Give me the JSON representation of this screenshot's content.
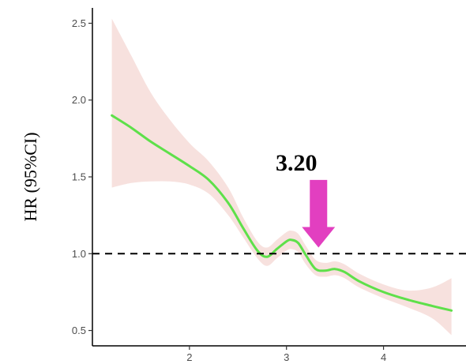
{
  "chart_data": {
    "type": "line",
    "title": "",
    "xlabel": "",
    "ylabel": "HR (95%CI)",
    "xlim": [
      1.0,
      4.85
    ],
    "ylim": [
      0.4,
      2.6
    ],
    "x_ticks": [
      2,
      3,
      4
    ],
    "x_tick_labels": [
      "2",
      "3",
      "4"
    ],
    "y_ticks": [
      0.5,
      1.0,
      1.5,
      2.0,
      2.5
    ],
    "y_tick_labels": [
      "0.5",
      "1.0",
      "1.5",
      "2.0",
      "2.5"
    ],
    "grid": false,
    "legend": "none",
    "reference_line": {
      "y": 1.0,
      "style": "dashed",
      "color": "#000000"
    },
    "series": [
      {
        "color": "#5ee04a",
        "band_color": "#f7e1de",
        "x": [
          1.2,
          1.4,
          1.6,
          1.8,
          2.0,
          2.2,
          2.4,
          2.55,
          2.7,
          2.8,
          2.9,
          3.0,
          3.05,
          3.12,
          3.2,
          3.3,
          3.4,
          3.5,
          3.6,
          3.75,
          4.0,
          4.25,
          4.5,
          4.7
        ],
        "y": [
          1.9,
          1.82,
          1.73,
          1.65,
          1.57,
          1.48,
          1.33,
          1.17,
          1.02,
          0.98,
          1.03,
          1.08,
          1.09,
          1.07,
          0.99,
          0.9,
          0.89,
          0.9,
          0.88,
          0.82,
          0.75,
          0.7,
          0.66,
          0.63
        ],
        "lower": [
          1.43,
          1.46,
          1.47,
          1.47,
          1.45,
          1.39,
          1.25,
          1.11,
          0.97,
          0.92,
          0.97,
          1.02,
          1.03,
          1.01,
          0.93,
          0.86,
          0.85,
          0.86,
          0.84,
          0.78,
          0.71,
          0.65,
          0.58,
          0.47
        ],
        "upper": [
          2.53,
          2.29,
          2.05,
          1.87,
          1.72,
          1.6,
          1.43,
          1.24,
          1.08,
          1.04,
          1.09,
          1.14,
          1.15,
          1.13,
          1.05,
          0.96,
          0.94,
          0.95,
          0.93,
          0.87,
          0.8,
          0.76,
          0.78,
          0.84
        ]
      }
    ],
    "annotations": [
      {
        "text": "3.20",
        "arrow_x": 3.33,
        "arrow_y_top": 1.48,
        "arrow_y_tip": 1.04,
        "color": "#e23fc0"
      }
    ]
  }
}
